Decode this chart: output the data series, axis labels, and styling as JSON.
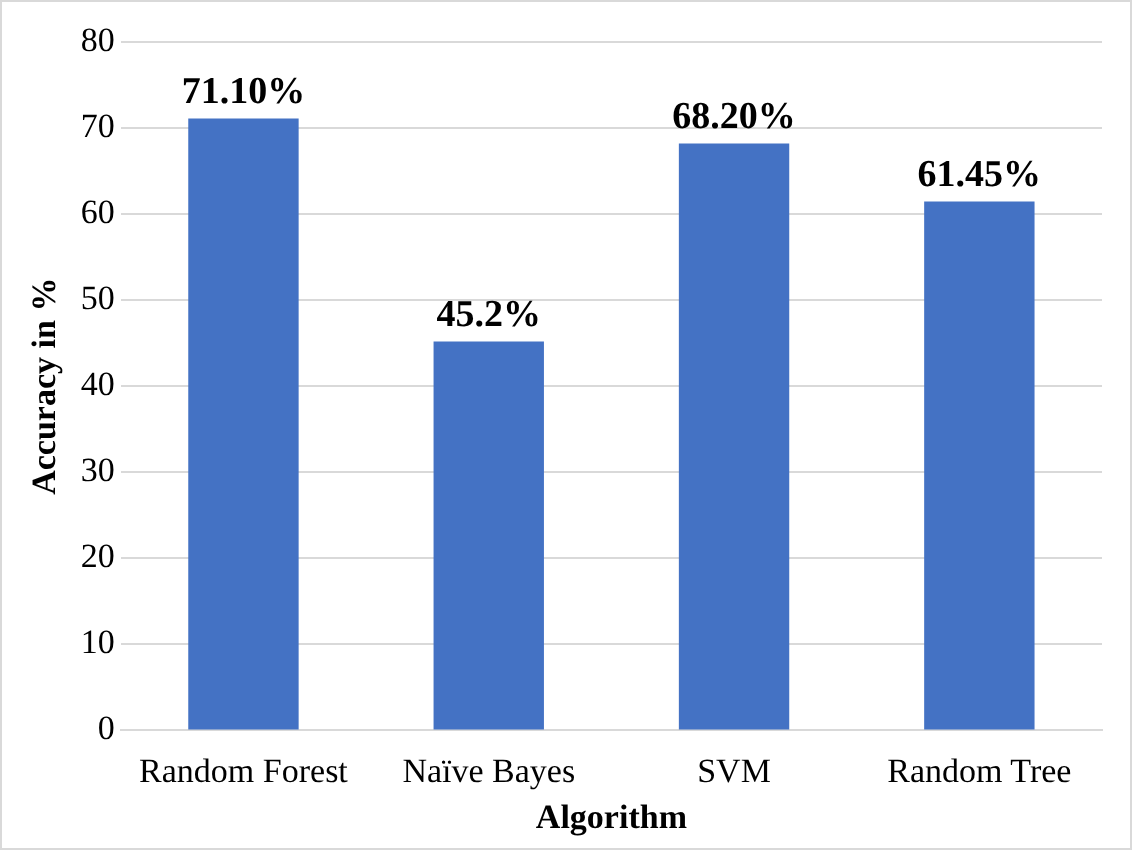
{
  "chart_data": {
    "type": "bar",
    "xlabel": "Algorithm",
    "ylabel": "Accuracy in %",
    "categories": [
      "Random Forest",
      "Naïve Bayes",
      "SVM",
      "Random Tree"
    ],
    "values": [
      71.1,
      45.2,
      68.2,
      61.45
    ],
    "value_labels": [
      "71.10%",
      "45.2%",
      "68.20%",
      "61.45%"
    ],
    "color": "#4472c4",
    "ylim": [
      0,
      80
    ],
    "yticks": [
      0,
      10,
      20,
      30,
      40,
      50,
      60,
      70,
      80
    ],
    "grid": "y",
    "legend": false
  }
}
